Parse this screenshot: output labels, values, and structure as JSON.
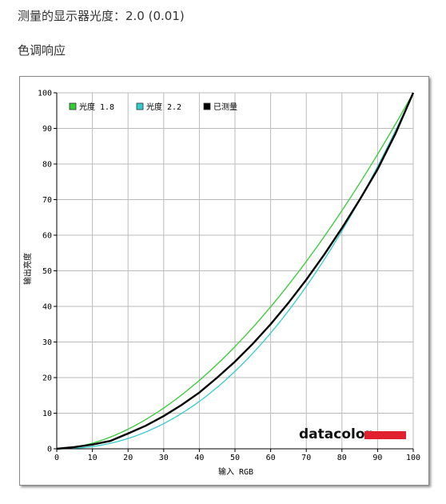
{
  "header": {
    "measured_gamma": "测量的显示器光度：2.0 (0.01)",
    "section_title": "色调响应"
  },
  "brand": {
    "logo_text": "datacolor",
    "accent_color": "#e0202e"
  },
  "chart_data": {
    "type": "line",
    "title": "",
    "xlabel": "输入 RGB",
    "ylabel": "输出亮度",
    "xlim": [
      0,
      100
    ],
    "ylim": [
      0,
      100
    ],
    "x_ticks": [
      "0",
      "10",
      "20",
      "30",
      "40",
      "50",
      "60",
      "70",
      "80",
      "90",
      "100"
    ],
    "y_ticks": [
      "0",
      "10",
      "20",
      "30",
      "40",
      "50",
      "60",
      "70",
      "80",
      "90",
      "100"
    ],
    "grid": true,
    "legend_position": "top-left",
    "series": [
      {
        "name": "光度 1.8",
        "color": "#33cc33",
        "gamma": 1.8
      },
      {
        "name": "光度 2.2",
        "color": "#33cccc",
        "gamma": 2.2
      },
      {
        "name": "已测量",
        "color": "#000000",
        "x": [
          0,
          5,
          10,
          15,
          20,
          25,
          30,
          35,
          40,
          45,
          50,
          55,
          60,
          65,
          70,
          75,
          80,
          85,
          90,
          95,
          100
        ],
        "y": [
          0,
          0.5,
          1.2,
          2.2,
          4.3,
          6.5,
          9.2,
          12.3,
          15.8,
          20.0,
          24.5,
          29.5,
          35.0,
          41.0,
          47.5,
          54.5,
          62.0,
          70.0,
          78.5,
          88.5,
          100
        ]
      }
    ]
  }
}
